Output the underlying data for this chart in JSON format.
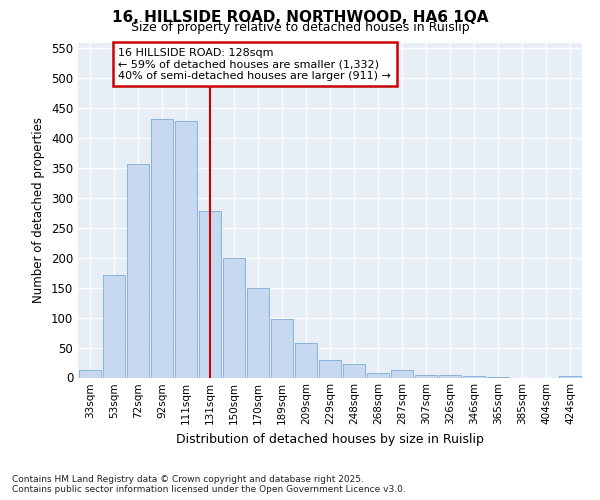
{
  "title1": "16, HILLSIDE ROAD, NORTHWOOD, HA6 1QA",
  "title2": "Size of property relative to detached houses in Ruislip",
  "xlabel": "Distribution of detached houses by size in Ruislip",
  "ylabel": "Number of detached properties",
  "annotation_line1": "16 HILLSIDE ROAD: 128sqm",
  "annotation_line2": "← 59% of detached houses are smaller (1,332)",
  "annotation_line3": "40% of semi-detached houses are larger (911) →",
  "footer1": "Contains HM Land Registry data © Crown copyright and database right 2025.",
  "footer2": "Contains public sector information licensed under the Open Government Licence v3.0.",
  "categories": [
    "33sqm",
    "53sqm",
    "72sqm",
    "92sqm",
    "111sqm",
    "131sqm",
    "150sqm",
    "170sqm",
    "189sqm",
    "209sqm",
    "229sqm",
    "248sqm",
    "268sqm",
    "287sqm",
    "307sqm",
    "326sqm",
    "346sqm",
    "365sqm",
    "385sqm",
    "404sqm",
    "424sqm"
  ],
  "values": [
    13,
    172,
    357,
    432,
    428,
    278,
    200,
    150,
    98,
    58,
    30,
    22,
    7,
    12,
    5,
    5,
    2,
    1,
    0,
    0,
    2
  ],
  "bar_color": "#c6d9f0",
  "bar_edge_color": "#8ab4d8",
  "line_color": "#cc0000",
  "background_color": "#ffffff",
  "plot_bg_color": "#e8eef6",
  "grid_color": "#ffffff",
  "ylim": [
    0,
    560
  ],
  "yticks": [
    0,
    50,
    100,
    150,
    200,
    250,
    300,
    350,
    400,
    450,
    500,
    550
  ],
  "prop_bar_idx": 5
}
